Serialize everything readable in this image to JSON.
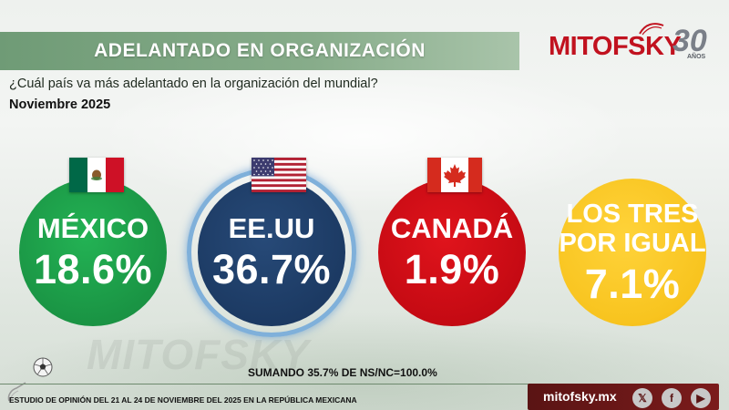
{
  "header": {
    "title": "ADELANTADO EN ORGANIZACIÓN",
    "question": "¿Cuál país va más adelantado en la organización del mundial?",
    "date": "Noviembre 2025"
  },
  "logo": {
    "brand": "MITOFSKY",
    "anniversary": "30",
    "anniversary_suffix": "AÑOS"
  },
  "watermark": "MITOFSKY",
  "chart_data": {
    "type": "bar",
    "categories": [
      "MÉXICO",
      "EE.UU",
      "CANADÁ",
      "LOS TRES POR IGUAL"
    ],
    "values": [
      18.6,
      36.7,
      1.9,
      7.1
    ],
    "unit": "%",
    "labels": [
      "18.6%",
      "36.7%",
      "1.9%",
      "7.1%"
    ],
    "colors": [
      "#1a9444",
      "#1c3a63",
      "#c50a13",
      "#f8c41f"
    ],
    "highlighted": "EE.UU",
    "title": "ADELANTADO EN ORGANIZACIÓN"
  },
  "circles": [
    {
      "name": "MÉXICO",
      "value_label": "18.6%",
      "flag": "mexico-flag-icon"
    },
    {
      "name": "EE.UU",
      "value_label": "36.7%",
      "flag": "usa-flag-icon"
    },
    {
      "name": "CANADÁ",
      "value_label": "1.9%",
      "flag": "canada-flag-icon"
    },
    {
      "name_line1": "LOS TRES",
      "name_line2": "POR IGUAL",
      "value_label": "7.1%"
    }
  ],
  "footnote": "SUMANDO 35.7% DE NS/NC=100.0%",
  "study": "ESTUDIO DE OPINIÓN DEL 21 AL 24 DE NOVIEMBRE DEL 2025 EN LA REPÚBLICA MEXICANA",
  "social": {
    "site": "mitofsky.mx",
    "icons": [
      "x-icon",
      "facebook-icon",
      "youtube-icon"
    ],
    "x_glyph": "𝕏",
    "f_glyph": "f",
    "yt_glyph": "▶"
  }
}
